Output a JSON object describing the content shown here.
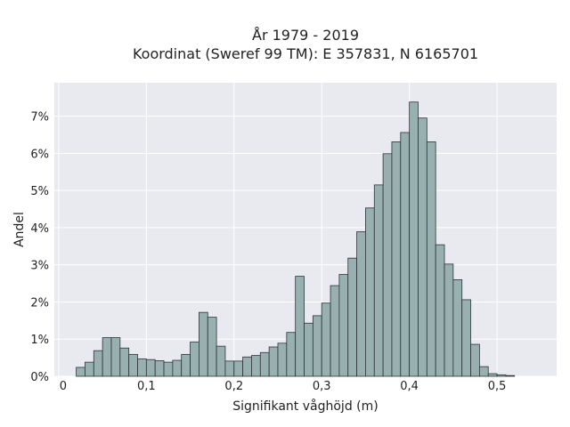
{
  "chart_data": {
    "type": "bar",
    "title": "År 1979 - 2019",
    "subtitle": "Koordinat (Sweref 99 TM): E 357831, N 6165701",
    "xlabel": "Signifikant våghöjd (m)",
    "ylabel": "Andel",
    "bin_width": 0.01,
    "bin_start": 0.02,
    "values": [
      0.24,
      0.38,
      0.69,
      1.04,
      1.04,
      0.76,
      0.59,
      0.47,
      0.45,
      0.42,
      0.38,
      0.43,
      0.59,
      0.92,
      1.72,
      1.59,
      0.81,
      0.41,
      0.41,
      0.52,
      0.56,
      0.64,
      0.79,
      0.89,
      1.18,
      2.69,
      1.43,
      1.63,
      1.97,
      2.44,
      2.74,
      3.18,
      3.89,
      4.53,
      5.15,
      5.99,
      6.31,
      6.56,
      7.38,
      6.95,
      6.31,
      3.54,
      3.02,
      2.6,
      2.06,
      0.86,
      0.26,
      0.07,
      0.04,
      0.02
    ],
    "xlim": [
      -0.005,
      0.568
    ],
    "ylim": [
      0,
      7.9
    ],
    "x_ticks": [
      {
        "value": 0,
        "label": "0"
      },
      {
        "value": 0.1,
        "label": "0,1"
      },
      {
        "value": 0.2,
        "label": "0,2"
      },
      {
        "value": 0.3,
        "label": "0,3"
      },
      {
        "value": 0.4,
        "label": "0,4"
      },
      {
        "value": 0.5,
        "label": "0,5"
      }
    ],
    "y_ticks": [
      {
        "value": 0,
        "label": "0%"
      },
      {
        "value": 1,
        "label": "1%"
      },
      {
        "value": 2,
        "label": "2%"
      },
      {
        "value": 3,
        "label": "3%"
      },
      {
        "value": 4,
        "label": "4%"
      },
      {
        "value": 5,
        "label": "5%"
      },
      {
        "value": 6,
        "label": "6%"
      },
      {
        "value": 7,
        "label": "7%"
      }
    ],
    "grid": true,
    "legend": "none",
    "colors": {
      "bar_fill": "#98b1b0",
      "bar_stroke": "#2c3435",
      "plot_background": "#e9e9f0",
      "grid": "#ffffff"
    }
  }
}
